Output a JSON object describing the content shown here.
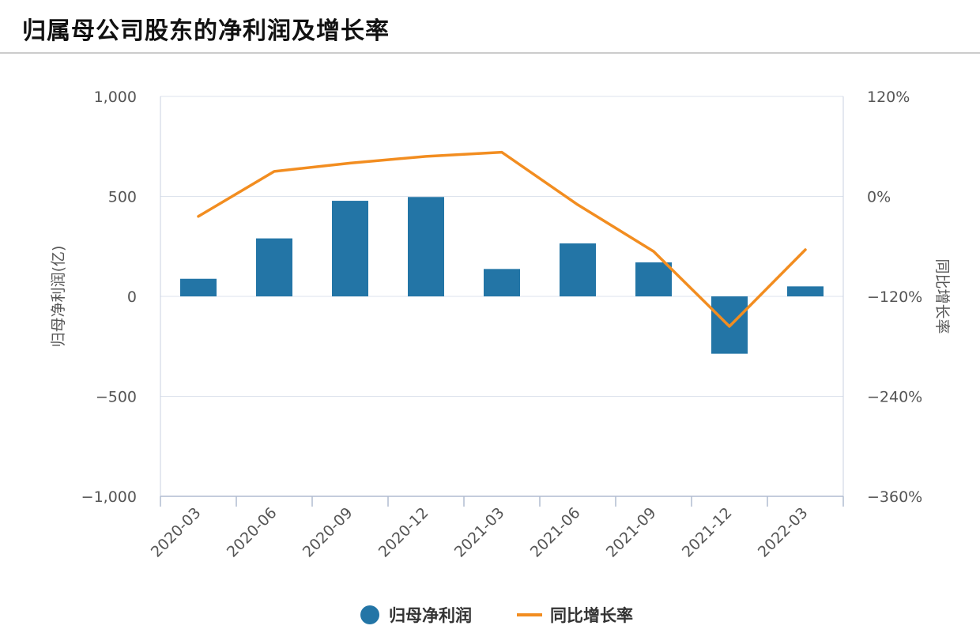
{
  "header": {
    "title": "归属母公司股东的净利润及增长率"
  },
  "chart_data": {
    "type": "bar",
    "categories": [
      "2020-03",
      "2020-06",
      "2020-09",
      "2020-12",
      "2021-03",
      "2021-06",
      "2021-09",
      "2021-12",
      "2022-03"
    ],
    "series": [
      {
        "name": "归母净利润",
        "type": "bar",
        "axis": "left",
        "color": "#2375a6",
        "values": [
          88,
          290,
          478,
          497,
          137,
          265,
          170,
          -287,
          50
        ]
      },
      {
        "name": "同比增长率",
        "type": "line",
        "axis": "right",
        "color": "#f28d20",
        "values": [
          -24,
          30,
          40,
          48,
          53,
          -10,
          -66,
          -156,
          -64
        ]
      }
    ],
    "ylabel": "归母净利润(亿)",
    "y2label": "同比增长率",
    "ylim": [
      -1000,
      1000
    ],
    "y2lim": [
      -360,
      120
    ],
    "yticks": [
      "1,000",
      "500",
      "0",
      "−500",
      "−1,000"
    ],
    "y2ticks": [
      "120%",
      "0%",
      "−120%",
      "−240%",
      "−360%"
    ],
    "grid": true,
    "legend": "bottom-center"
  }
}
